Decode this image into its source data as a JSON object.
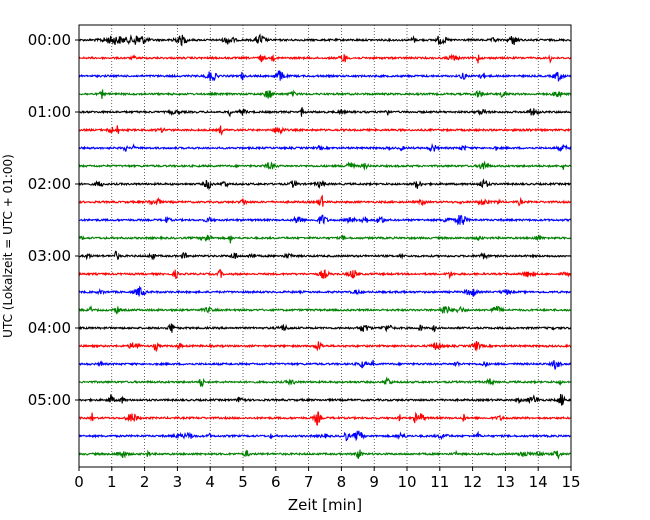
{
  "chart_data": {
    "type": "line",
    "xlabel": "Zeit  [min]",
    "ylabel": "UTC (Lokalzeit = UTC + 01:00)",
    "xlim": [
      0,
      15
    ],
    "x_ticks": [
      "0",
      "1",
      "2",
      "3",
      "4",
      "5",
      "6",
      "7",
      "8",
      "9",
      "10",
      "11",
      "12",
      "13",
      "14",
      "15"
    ],
    "y_ticks": [
      "00:00",
      "01:00",
      "02:00",
      "03:00",
      "04:00",
      "05:00"
    ],
    "trace_interval_minutes": 15,
    "trace_count": 24,
    "trace_colors": [
      "#000000",
      "#ff0000",
      "#0000ff",
      "#008000"
    ],
    "grid": "vertical-dotted"
  }
}
